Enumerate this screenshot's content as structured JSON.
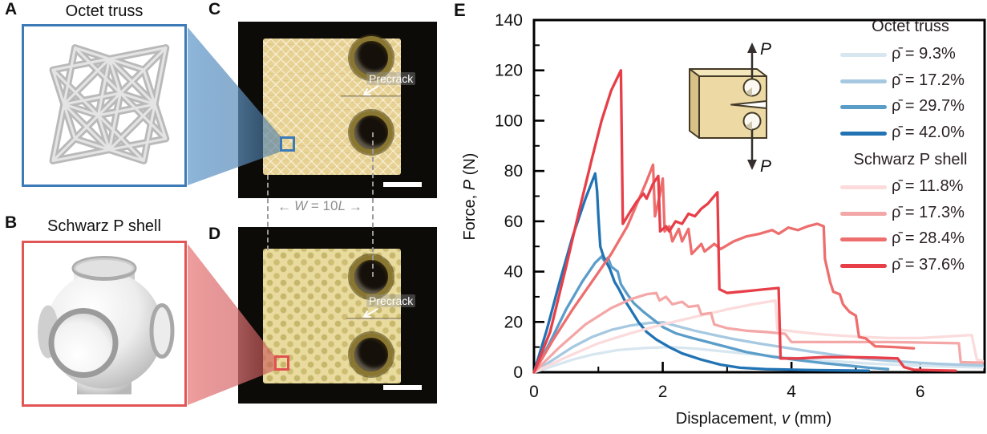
{
  "panels": {
    "a": {
      "letter": "A",
      "title": "Octet truss"
    },
    "b": {
      "letter": "B",
      "title": "Schwarz P shell"
    },
    "c": {
      "letter": "C",
      "precrack": "Precrack"
    },
    "d": {
      "letter": "D",
      "precrack": "Precrack"
    },
    "e": {
      "letter": "E"
    }
  },
  "dimension": {
    "w": "W",
    "mid": " = 10",
    "l": "L"
  },
  "inset": {
    "top_label": "P",
    "bottom_label": "P",
    "block_color": "#ecd9a4"
  },
  "colors": {
    "box_a_border": "#3d7ab8",
    "box_b_border": "#e25555",
    "photo_bg": "#0d0b08",
    "specimen_tan": "#e8d79c"
  },
  "chart_data": {
    "type": "line",
    "title": "",
    "xlabel_parts": [
      {
        "t": "Displacement, ",
        "i": false
      },
      {
        "t": "v",
        "i": true
      },
      {
        "t": " (mm)",
        "i": false
      }
    ],
    "ylabel_parts": [
      {
        "t": "Force, ",
        "i": false
      },
      {
        "t": "P",
        "i": true
      },
      {
        "t": " (N)",
        "i": false
      }
    ],
    "xlim": [
      0,
      7
    ],
    "ylim": [
      0,
      140
    ],
    "xticks": [
      0,
      2,
      4,
      6
    ],
    "xminorticks": [
      1,
      3,
      5,
      7
    ],
    "yticks": [
      0,
      20,
      40,
      60,
      80,
      100,
      120,
      140
    ],
    "yminorticks": [
      10,
      30,
      50,
      70,
      90,
      110,
      130
    ],
    "grid": false,
    "legend_position": "upper right",
    "legend": {
      "groups": [
        {
          "header": "Octet truss",
          "items": [
            {
              "label": "ρ̄ = 9.3%",
              "color": "#d8e6f0"
            },
            {
              "label": "ρ̄ = 17.2%",
              "color": "#a6c9e1"
            },
            {
              "label": "ρ̄ = 29.7%",
              "color": "#5b9dc9"
            },
            {
              "label": "ρ̄ = 42.0%",
              "color": "#2273b4"
            }
          ]
        },
        {
          "header": "Schwarz P shell",
          "items": [
            {
              "label": "ρ̄ = 11.8%",
              "color": "#fbdbdb"
            },
            {
              "label": "ρ̄ = 17.3%",
              "color": "#f4a7a7"
            },
            {
              "label": "ρ̄ = 28.4%",
              "color": "#ee6e6e"
            },
            {
              "label": "ρ̄ = 37.6%",
              "color": "#e73e48"
            }
          ]
        }
      ]
    },
    "series": [
      {
        "name": "Octet truss ρ̄ = 9.3%",
        "color": "#d8e6f0",
        "points": [
          [
            0,
            0
          ],
          [
            0.3,
            2.5
          ],
          [
            0.6,
            5
          ],
          [
            0.9,
            7
          ],
          [
            1.3,
            8.8
          ],
          [
            1.7,
            9.6
          ],
          [
            2.1,
            10
          ],
          [
            2.5,
            9.4
          ],
          [
            2.9,
            8.4
          ],
          [
            3.3,
            7.4
          ],
          [
            3.7,
            6.4
          ],
          [
            4.1,
            5.5
          ],
          [
            4.6,
            4.5
          ],
          [
            5.1,
            3.6
          ],
          [
            5.6,
            3
          ],
          [
            6.1,
            2.5
          ],
          [
            6.6,
            2.1
          ],
          [
            6.97,
            1.9
          ]
        ]
      },
      {
        "name": "Octet truss ρ̄ = 17.2%",
        "color": "#a6c9e1",
        "points": [
          [
            0,
            0
          ],
          [
            0.3,
            5
          ],
          [
            0.6,
            10
          ],
          [
            0.9,
            14
          ],
          [
            1.2,
            16.8
          ],
          [
            1.5,
            18.6
          ],
          [
            1.8,
            19.6
          ],
          [
            2.0,
            19.9
          ],
          [
            2.2,
            18.5
          ],
          [
            2.5,
            16.5
          ],
          [
            2.8,
            14.8
          ],
          [
            3.1,
            13.2
          ],
          [
            3.5,
            11.4
          ],
          [
            3.9,
            9.8
          ],
          [
            4.3,
            8.2
          ],
          [
            4.7,
            6.8
          ],
          [
            5.1,
            5.5
          ],
          [
            5.5,
            4.6
          ],
          [
            5.9,
            3.9
          ],
          [
            6.3,
            3.3
          ],
          [
            6.7,
            2.9
          ],
          [
            6.97,
            2.7
          ]
        ]
      },
      {
        "name": "Octet truss ρ̄ = 29.7%",
        "color": "#5b9dc9",
        "points": [
          [
            0,
            0
          ],
          [
            0.25,
            12
          ],
          [
            0.5,
            25
          ],
          [
            0.75,
            36
          ],
          [
            0.95,
            43.5
          ],
          [
            1.05,
            46
          ],
          [
            1.1,
            44
          ],
          [
            1.15,
            45.5
          ],
          [
            1.2,
            42
          ],
          [
            1.3,
            40
          ],
          [
            1.35,
            35
          ],
          [
            1.45,
            31
          ],
          [
            1.55,
            27.5
          ],
          [
            1.7,
            24
          ],
          [
            1.85,
            21
          ],
          [
            2.0,
            18
          ],
          [
            2.2,
            15.5
          ],
          [
            2.4,
            14
          ],
          [
            2.7,
            12
          ],
          [
            3.0,
            10
          ],
          [
            3.3,
            8
          ],
          [
            3.7,
            6.2
          ],
          [
            4.1,
            4.8
          ],
          [
            4.5,
            3.6
          ],
          [
            4.9,
            2.6
          ],
          [
            5.2,
            1.8
          ],
          [
            5.5,
            1.2
          ]
        ]
      },
      {
        "name": "Octet truss ρ̄ = 42.0%",
        "color": "#2273b4",
        "points": [
          [
            0,
            0
          ],
          [
            0.2,
            17
          ],
          [
            0.4,
            36
          ],
          [
            0.6,
            54
          ],
          [
            0.8,
            69
          ],
          [
            0.95,
            79
          ],
          [
            0.98,
            72
          ],
          [
            1.0,
            62
          ],
          [
            1.03,
            50
          ],
          [
            1.08,
            46
          ],
          [
            1.12,
            44
          ],
          [
            1.18,
            41
          ],
          [
            1.25,
            36
          ],
          [
            1.32,
            33
          ],
          [
            1.4,
            29
          ],
          [
            1.5,
            25
          ],
          [
            1.62,
            20
          ],
          [
            1.75,
            16
          ],
          [
            1.9,
            13
          ],
          [
            2.1,
            10
          ],
          [
            2.3,
            7.5
          ],
          [
            2.6,
            5
          ],
          [
            2.9,
            3
          ],
          [
            3.2,
            1.8
          ],
          [
            3.6,
            1.2
          ],
          [
            4.2,
            0.9
          ],
          [
            4.8,
            0.7
          ],
          [
            5.2,
            0.6
          ]
        ]
      },
      {
        "name": "Schwarz P shell ρ̄ = 11.8%",
        "color": "#fbdbdb",
        "points": [
          [
            0,
            0
          ],
          [
            0.5,
            6
          ],
          [
            1.0,
            11.5
          ],
          [
            1.5,
            15.5
          ],
          [
            2.0,
            19
          ],
          [
            2.5,
            22
          ],
          [
            3.0,
            25
          ],
          [
            3.4,
            27
          ],
          [
            3.75,
            28.5
          ],
          [
            3.78,
            17
          ],
          [
            4.1,
            16
          ],
          [
            4.5,
            15
          ],
          [
            5.0,
            14.2
          ],
          [
            5.5,
            13.6
          ],
          [
            6.0,
            13.6
          ],
          [
            6.4,
            14.2
          ],
          [
            6.8,
            14.8
          ],
          [
            6.88,
            5
          ],
          [
            6.97,
            4.5
          ]
        ]
      },
      {
        "name": "Schwarz P shell ρ̄ = 17.3%",
        "color": "#f4a7a7",
        "points": [
          [
            0,
            0
          ],
          [
            0.4,
            10
          ],
          [
            0.8,
            19
          ],
          [
            1.2,
            25.5
          ],
          [
            1.5,
            29
          ],
          [
            1.75,
            31
          ],
          [
            1.9,
            31.5
          ],
          [
            1.95,
            28.5
          ],
          [
            2.05,
            30
          ],
          [
            2.15,
            27
          ],
          [
            2.3,
            28
          ],
          [
            2.4,
            26
          ],
          [
            2.55,
            26.5
          ],
          [
            2.6,
            23
          ],
          [
            2.75,
            23.5
          ],
          [
            2.8,
            19
          ],
          [
            3.0,
            17.5
          ],
          [
            3.3,
            16.5
          ],
          [
            3.6,
            16
          ],
          [
            3.9,
            15.3
          ],
          [
            4.0,
            12
          ],
          [
            4.5,
            12
          ],
          [
            5.0,
            12
          ],
          [
            5.5,
            12
          ],
          [
            6.0,
            11.8
          ],
          [
            6.6,
            11.5
          ],
          [
            6.63,
            4
          ],
          [
            6.97,
            3.8
          ]
        ]
      },
      {
        "name": "Schwarz P shell ρ̄ = 28.4%",
        "color": "#ee6e6e",
        "points": [
          [
            0,
            0
          ],
          [
            0.3,
            13
          ],
          [
            0.6,
            25
          ],
          [
            0.9,
            36
          ],
          [
            1.2,
            47
          ],
          [
            1.45,
            58
          ],
          [
            1.6,
            67
          ],
          [
            1.75,
            76
          ],
          [
            1.85,
            82.5
          ],
          [
            1.88,
            62
          ],
          [
            1.95,
            70
          ],
          [
            2.0,
            77
          ],
          [
            2.03,
            56
          ],
          [
            2.1,
            58
          ],
          [
            2.15,
            52
          ],
          [
            2.25,
            57
          ],
          [
            2.3,
            52
          ],
          [
            2.4,
            57
          ],
          [
            2.45,
            47
          ],
          [
            2.6,
            51
          ],
          [
            2.65,
            48
          ],
          [
            2.8,
            51
          ],
          [
            2.9,
            49
          ],
          [
            3.1,
            52
          ],
          [
            3.3,
            54
          ],
          [
            3.5,
            55
          ],
          [
            3.7,
            56.5
          ],
          [
            3.8,
            55
          ],
          [
            3.95,
            57.5
          ],
          [
            4.1,
            56.5
          ],
          [
            4.25,
            58
          ],
          [
            4.4,
            59
          ],
          [
            4.5,
            58
          ],
          [
            4.52,
            45
          ],
          [
            4.6,
            36
          ],
          [
            4.65,
            32
          ],
          [
            4.75,
            31
          ],
          [
            4.8,
            27
          ],
          [
            4.9,
            24
          ],
          [
            5.0,
            22.5
          ],
          [
            5.05,
            14
          ],
          [
            5.15,
            13.5
          ],
          [
            5.3,
            10.3
          ],
          [
            5.6,
            10
          ],
          [
            5.9,
            9.5
          ]
        ]
      },
      {
        "name": "Schwarz P shell ρ̄ = 37.6%",
        "color": "#e73e48",
        "points": [
          [
            0,
            0
          ],
          [
            0.25,
            16
          ],
          [
            0.5,
            42
          ],
          [
            0.7,
            64
          ],
          [
            0.9,
            85
          ],
          [
            1.05,
            100
          ],
          [
            1.2,
            112
          ],
          [
            1.35,
            120
          ],
          [
            1.38,
            59
          ],
          [
            1.5,
            64
          ],
          [
            1.6,
            68
          ],
          [
            1.7,
            71
          ],
          [
            1.75,
            69
          ],
          [
            1.85,
            75
          ],
          [
            1.93,
            78
          ],
          [
            1.96,
            56
          ],
          [
            2.05,
            58
          ],
          [
            2.1,
            56
          ],
          [
            2.2,
            60
          ],
          [
            2.3,
            59
          ],
          [
            2.4,
            63
          ],
          [
            2.5,
            62
          ],
          [
            2.6,
            65
          ],
          [
            2.7,
            67
          ],
          [
            2.8,
            70
          ],
          [
            2.85,
            71.5
          ],
          [
            2.88,
            33
          ],
          [
            3.0,
            31.5
          ],
          [
            3.2,
            32
          ],
          [
            3.4,
            32.5
          ],
          [
            3.6,
            33
          ],
          [
            3.8,
            33.5
          ],
          [
            3.83,
            5.5
          ],
          [
            4.1,
            5.5
          ],
          [
            4.5,
            6
          ],
          [
            4.9,
            6
          ],
          [
            5.3,
            5.8
          ],
          [
            5.65,
            5.5
          ],
          [
            5.75,
            2
          ],
          [
            5.9,
            1
          ],
          [
            6.2,
            0.8
          ],
          [
            6.55,
            0.6
          ]
        ]
      }
    ]
  }
}
